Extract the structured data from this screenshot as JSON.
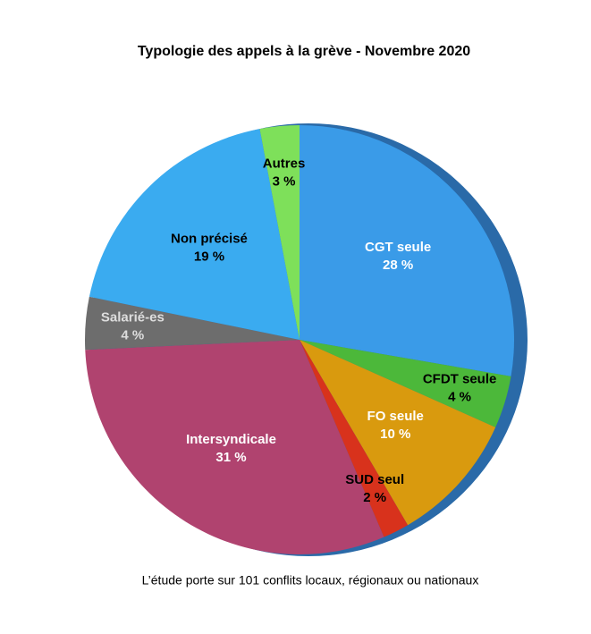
{
  "chart_data": {
    "type": "pie",
    "title": "Typologie des appels à la grève - Novembre 2020",
    "categories": [
      "CGT seule",
      "CFDT seule",
      "FO seule",
      "SUD seul",
      "Intersyndicale",
      "Salarié-es",
      "Non précisé",
      "Autres"
    ],
    "values": [
      28,
      4,
      10,
      2,
      31,
      4,
      19,
      3
    ],
    "value_labels": [
      "28 %",
      "4 %",
      "10 %",
      "2 %",
      "31 %",
      "4 %",
      "19 %",
      "3 %"
    ],
    "colors": [
      "#3a9be8",
      "#4cb83a",
      "#d99a0e",
      "#d8321c",
      "#b0436f",
      "#6d6d6d",
      "#3aabf0",
      "#7ee05a"
    ],
    "label_colors": [
      "#ffffff",
      "#000000",
      "#ffffff",
      "#000000",
      "#ffffff",
      "#dddddd",
      "#000000",
      "#000000"
    ],
    "note": "L’étude porte sur 101 conflits locaux, régionaux ou nationaux"
  }
}
